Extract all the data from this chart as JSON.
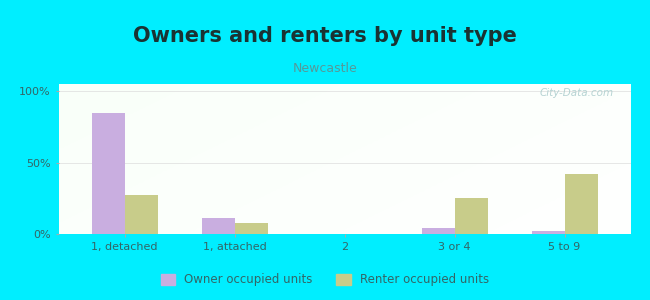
{
  "title": "Owners and renters by unit type",
  "subtitle": "Newcastle",
  "categories": [
    "1, detached",
    "1, attached",
    "2",
    "3 or 4",
    "5 to 9"
  ],
  "owner_values": [
    85,
    11,
    0,
    4,
    2
  ],
  "renter_values": [
    27,
    8,
    0,
    25,
    42
  ],
  "owner_color": "#c9aee0",
  "renter_color": "#c8cc8a",
  "background_color": "#00eeff",
  "ylabel_ticks": [
    "0%",
    "50%",
    "100%"
  ],
  "ytick_values": [
    0,
    50,
    100
  ],
  "ylim": [
    0,
    105
  ],
  "bar_width": 0.3,
  "title_fontsize": 15,
  "subtitle_fontsize": 9,
  "legend_label_owner": "Owner occupied units",
  "legend_label_renter": "Renter occupied units",
  "watermark": "City-Data.com",
  "tick_color": "#336666",
  "title_color": "#1a3333",
  "subtitle_color": "#559999",
  "watermark_color": "#aacccc"
}
